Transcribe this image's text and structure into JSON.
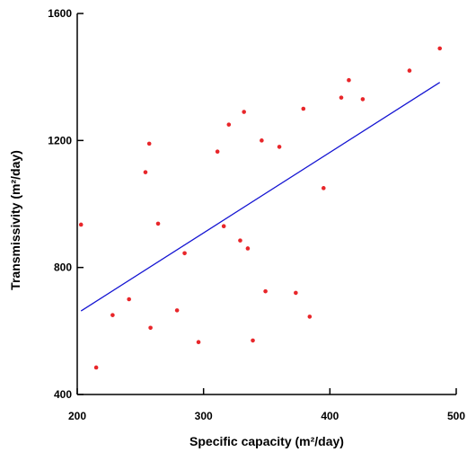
{
  "chart_data": {
    "type": "scatter",
    "title": "",
    "xlabel": "Specific capacity (m²/day)",
    "ylabel": "Transmissivity (m²/day)",
    "xlim": [
      200,
      500
    ],
    "ylim": [
      400,
      1600
    ],
    "xticks": [
      "200",
      "300",
      "400",
      "500"
    ],
    "yticks": [
      "400",
      "800",
      "1200",
      "1600"
    ],
    "grid": false,
    "legend": "none",
    "colors": {
      "points": "#e8262a",
      "trend": "#1414d2",
      "axes": "#000000"
    },
    "series": [
      {
        "values": [
          {
            "x": 203,
            "y": 935
          },
          {
            "x": 215,
            "y": 485
          },
          {
            "x": 228,
            "y": 650
          },
          {
            "x": 241,
            "y": 700
          },
          {
            "x": 254,
            "y": 1100
          },
          {
            "x": 257,
            "y": 1190
          },
          {
            "x": 258,
            "y": 610
          },
          {
            "x": 264,
            "y": 938
          },
          {
            "x": 279,
            "y": 665
          },
          {
            "x": 285,
            "y": 845
          },
          {
            "x": 296,
            "y": 565
          },
          {
            "x": 311,
            "y": 1165
          },
          {
            "x": 316,
            "y": 930
          },
          {
            "x": 320,
            "y": 1250
          },
          {
            "x": 329,
            "y": 885
          },
          {
            "x": 332,
            "y": 1290
          },
          {
            "x": 335,
            "y": 860
          },
          {
            "x": 339,
            "y": 570
          },
          {
            "x": 346,
            "y": 1200
          },
          {
            "x": 349,
            "y": 725
          },
          {
            "x": 360,
            "y": 1180
          },
          {
            "x": 373,
            "y": 720
          },
          {
            "x": 379,
            "y": 1300
          },
          {
            "x": 384,
            "y": 645
          },
          {
            "x": 395,
            "y": 1050
          },
          {
            "x": 409,
            "y": 1335
          },
          {
            "x": 415,
            "y": 1390
          },
          {
            "x": 426,
            "y": 1330
          },
          {
            "x": 463,
            "y": 1420
          },
          {
            "x": 487,
            "y": 1490
          }
        ]
      }
    ],
    "trendline": {
      "x": [
        203,
        487
      ],
      "y": [
        663,
        1383
      ]
    }
  }
}
